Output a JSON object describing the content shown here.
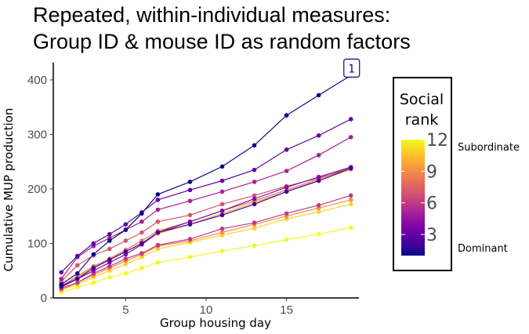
{
  "title": {
    "line1": "Repeated, within-individual measures:",
    "line2": "Group ID & mouse ID as random factors"
  },
  "chart_data": {
    "type": "line",
    "xlabel": "Group housing day",
    "ylabel": "Cumulative MUP production",
    "xlim": [
      0.5,
      19.5
    ],
    "ylim": [
      0,
      420
    ],
    "xticks": [
      5,
      10,
      15
    ],
    "yticks": [
      0,
      100,
      200,
      300,
      400
    ],
    "grid": false,
    "x": [
      1,
      2,
      3,
      4,
      5,
      6,
      7,
      9,
      11,
      13,
      15,
      17,
      19
    ],
    "series": [
      {
        "rank": 1,
        "values": [
          25,
          45,
          80,
          105,
          125,
          155,
          190,
          213,
          241,
          280,
          335,
          372,
          408
        ]
      },
      {
        "rank": 2,
        "values": [
          22,
          35,
          55,
          70,
          85,
          100,
          120,
          135,
          152,
          172,
          195,
          215,
          238
        ]
      },
      {
        "rank": 3,
        "values": [
          47,
          77,
          100,
          117,
          135,
          157,
          180,
          198,
          215,
          235,
          272,
          298,
          328
        ]
      },
      {
        "rank": 4,
        "values": [
          20,
          35,
          50,
          65,
          80,
          98,
          120,
          140,
          160,
          182,
          203,
          222,
          240
        ]
      },
      {
        "rank": 5,
        "values": [
          35,
          75,
          95,
          110,
          125,
          140,
          162,
          178,
          195,
          213,
          233,
          262,
          295
        ]
      },
      {
        "rank": 6,
        "values": [
          18,
          28,
          45,
          58,
          72,
          82,
          97,
          108,
          127,
          138,
          155,
          170,
          188
        ]
      },
      {
        "rank": 7,
        "values": [
          30,
          60,
          78,
          90,
          105,
          120,
          140,
          152,
          172,
          188,
          205,
          220,
          237
        ]
      },
      {
        "rank": 8,
        "values": [
          22,
          40,
          58,
          72,
          88,
          105,
          123,
          140,
          160,
          178,
          198,
          218,
          240
        ]
      },
      {
        "rank": 9,
        "values": [
          15,
          28,
          42,
          55,
          68,
          80,
          95,
          105,
          120,
          135,
          150,
          165,
          180
        ]
      },
      {
        "rank": 10,
        "values": [
          20,
          38,
          55,
          70,
          85,
          100,
          118,
          135,
          155,
          175,
          195,
          215,
          236
        ]
      },
      {
        "rank": 11,
        "values": [
          15,
          25,
          38,
          50,
          62,
          75,
          90,
          102,
          115,
          128,
          145,
          158,
          172
        ]
      },
      {
        "rank": 12,
        "values": [
          10,
          20,
          28,
          38,
          45,
          55,
          65,
          75,
          86,
          96,
          107,
          117,
          129
        ]
      }
    ],
    "annotation": {
      "text": "1",
      "x": 19,
      "y": 408
    },
    "legend": {
      "title_line1": "Social",
      "title_line2": "rank",
      "ticks": [
        12,
        9,
        6,
        3
      ],
      "range": [
        1,
        12
      ],
      "top_label": "Subordinate",
      "bottom_label": "Dominant",
      "placement": "right"
    },
    "colormap": [
      "#0d0887",
      "#46039f",
      "#7201a8",
      "#9c179e",
      "#bd3786",
      "#d8576b",
      "#ed7953",
      "#fb9f3a",
      "#fdca26",
      "#f0f921"
    ]
  }
}
